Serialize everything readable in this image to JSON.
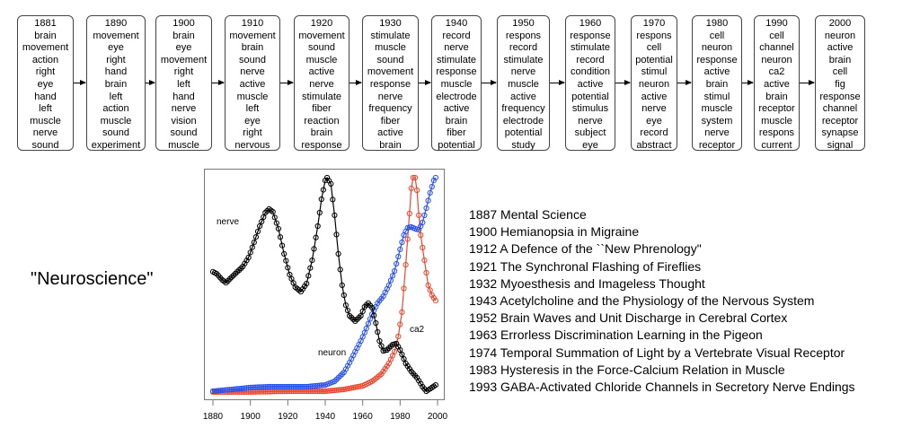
{
  "topics": [
    {
      "year": "1881",
      "words": [
        "brain",
        "movement",
        "action",
        "right",
        "eye",
        "hand",
        "left",
        "muscle",
        "nerve",
        "sound"
      ]
    },
    {
      "year": "1890",
      "words": [
        "movement",
        "eye",
        "right",
        "hand",
        "brain",
        "left",
        "action",
        "muscle",
        "sound",
        "experiment"
      ]
    },
    {
      "year": "1900",
      "words": [
        "brain",
        "eye",
        "movement",
        "right",
        "left",
        "hand",
        "nerve",
        "vision",
        "sound",
        "muscle"
      ]
    },
    {
      "year": "1910",
      "words": [
        "movement",
        "brain",
        "sound",
        "nerve",
        "active",
        "muscle",
        "left",
        "eye",
        "right",
        "nervous"
      ]
    },
    {
      "year": "1920",
      "words": [
        "movement",
        "sound",
        "muscle",
        "active",
        "nerve",
        "stimulate",
        "fiber",
        "reaction",
        "brain",
        "response"
      ]
    },
    {
      "year": "1930",
      "words": [
        "stimulate",
        "muscle",
        "sound",
        "movement",
        "response",
        "nerve",
        "frequency",
        "fiber",
        "active",
        "brain"
      ]
    },
    {
      "year": "1940",
      "words": [
        "record",
        "nerve",
        "stimulate",
        "response",
        "muscle",
        "electrode",
        "active",
        "brain",
        "fiber",
        "potential"
      ]
    },
    {
      "year": "1950",
      "words": [
        "respons",
        "record",
        "stimulate",
        "nerve",
        "muscle",
        "active",
        "frequency",
        "electrode",
        "potential",
        "study"
      ]
    },
    {
      "year": "1960",
      "words": [
        "response",
        "stimulate",
        "record",
        "condition",
        "active",
        "potential",
        "stimulus",
        "nerve",
        "subject",
        "eye"
      ]
    },
    {
      "year": "1970",
      "words": [
        "respons",
        "cell",
        "potential",
        "stimul",
        "neuron",
        "active",
        "nerve",
        "eye",
        "record",
        "abstract"
      ]
    },
    {
      "year": "1980",
      "words": [
        "cell",
        "neuron",
        "response",
        "active",
        "brain",
        "stimul",
        "muscle",
        "system",
        "nerve",
        "receptor"
      ]
    },
    {
      "year": "1990",
      "words": [
        "cell",
        "channel",
        "neuron",
        "ca2",
        "active",
        "brain",
        "receptor",
        "muscle",
        "respons",
        "current"
      ]
    },
    {
      "year": "2000",
      "words": [
        "neuron",
        "active",
        "brain",
        "cell",
        "fig",
        "response",
        "channel",
        "receptor",
        "synapse",
        "signal"
      ]
    }
  ],
  "title": "\"Neuroscience\"",
  "papers": [
    "1887 Mental Science",
    "1900 Hemianopsia in Migraine",
    "1912 A Defence of the ``New Phrenology\"",
    "1921 The Synchronal Flashing of Fireflies",
    "1932 Myoesthesis and Imageless Thought",
    "1943 Acetylcholine and the Physiology of the Nervous System",
    "1952 Brain Waves and Unit Discharge in Cerebral Cortex",
    "1963 Errorless Discrimination Learning in the Pigeon",
    "1974 Temporal Summation of Light by a Vertebrate Visual Receptor",
    "1983 Hysteresis in the Force-Calcium Relation in Muscle",
    "1993 GABA-Activated Chloride Channels in Secretory Nerve Endings"
  ],
  "chart_data": {
    "type": "line",
    "title": "",
    "xlabel": "",
    "ylabel": "",
    "xlim": [
      1880,
      2000
    ],
    "ylim": [
      -0.038,
      1.042
    ],
    "xticks": [
      1880,
      1900,
      1920,
      1940,
      1960,
      1980,
      2000
    ],
    "xtick_labels": [
      "1880",
      "1900",
      "1920",
      "1940",
      "1960",
      "1980",
      "2000"
    ],
    "grid": false,
    "series": [
      {
        "name": "nerve",
        "color": "#000000",
        "x": [
          1880,
          1882,
          1885,
          1887,
          1890,
          1893,
          1896,
          1899,
          1902,
          1905,
          1908,
          1910,
          1912,
          1915,
          1918,
          1921,
          1924,
          1927,
          1930,
          1933,
          1936,
          1938,
          1940,
          1941,
          1943,
          1945,
          1947,
          1949,
          1951,
          1953,
          1956,
          1959,
          1961,
          1963,
          1965,
          1967,
          1969,
          1971,
          1973,
          1976,
          1978,
          1980,
          1983,
          1986,
          1989,
          1992,
          1994,
          1997,
          1999
        ],
        "y": [
          0.559,
          0.55,
          0.521,
          0.508,
          0.534,
          0.559,
          0.584,
          0.626,
          0.697,
          0.773,
          0.836,
          0.853,
          0.84,
          0.761,
          0.643,
          0.546,
          0.487,
          0.466,
          0.504,
          0.613,
          0.773,
          0.899,
          0.987,
          1.0,
          0.971,
          0.824,
          0.643,
          0.496,
          0.403,
          0.353,
          0.328,
          0.353,
          0.395,
          0.412,
          0.391,
          0.319,
          0.235,
          0.189,
          0.193,
          0.218,
          0.223,
          0.193,
          0.13,
          0.092,
          0.063,
          0.021,
          0.0,
          0.017,
          0.029
        ]
      },
      {
        "name": "neuron",
        "color": "#2a52e8",
        "x": [
          1880,
          1890,
          1900,
          1910,
          1920,
          1930,
          1940,
          1945,
          1950,
          1953,
          1956,
          1959,
          1962,
          1965,
          1968,
          1971,
          1974,
          1977,
          1980,
          1982,
          1984,
          1986,
          1988,
          1990,
          1992,
          1994,
          1996,
          1998,
          1999
        ],
        "y": [
          0.0,
          0.008,
          0.017,
          0.021,
          0.021,
          0.021,
          0.029,
          0.046,
          0.088,
          0.134,
          0.185,
          0.235,
          0.294,
          0.361,
          0.412,
          0.445,
          0.496,
          0.563,
          0.664,
          0.731,
          0.765,
          0.769,
          0.761,
          0.756,
          0.79,
          0.857,
          0.929,
          0.987,
          1.0
        ]
      },
      {
        "name": "ca2",
        "color": "#e8482f",
        "x": [
          1880,
          1900,
          1920,
          1940,
          1950,
          1960,
          1965,
          1970,
          1974,
          1977,
          1979,
          1981,
          1983,
          1985,
          1986,
          1987,
          1988,
          1989,
          1990,
          1991,
          1993,
          1995,
          1997,
          1999
        ],
        "y": [
          -0.004,
          -0.004,
          0.0,
          0.0,
          0.008,
          0.025,
          0.046,
          0.08,
          0.13,
          0.185,
          0.256,
          0.37,
          0.592,
          0.832,
          0.95,
          1.0,
          1.0,
          0.941,
          0.824,
          0.731,
          0.613,
          0.496,
          0.45,
          0.424
        ]
      }
    ]
  }
}
